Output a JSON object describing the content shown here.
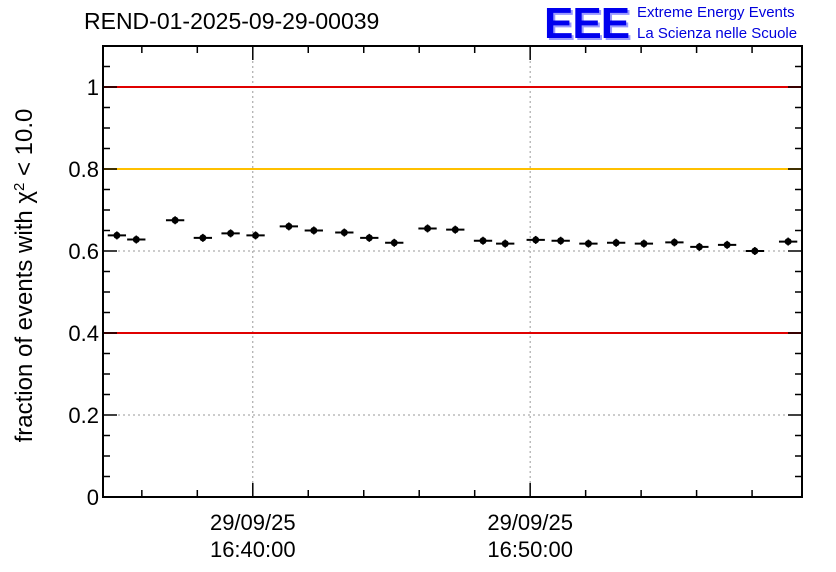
{
  "header": {
    "run_id": "REND-01-2025-09-29-00039"
  },
  "logo": {
    "mark": "EEE",
    "line1": "Extreme Energy Events",
    "line2": "La Scienza nelle Scuole",
    "color": "#0000ee"
  },
  "chart_data": {
    "type": "scatter",
    "title": "REND-01-2025-09-29-00039",
    "ylabel_prefix": "fraction of events with χ",
    "ylabel_sup": "2",
    "ylabel_suffix": " < 10.0",
    "xlabel": "",
    "ylim": [
      0,
      1.1
    ],
    "xlim_minutes": [
      0,
      25.2
    ],
    "yticks": [
      0,
      0.2,
      0.4,
      0.6,
      0.8,
      1
    ],
    "ytick_labels": [
      "0",
      "0.2",
      "0.4",
      "0.6",
      "0.8",
      "1"
    ],
    "xticks": [
      {
        "minute": 5.4,
        "date": "29/09/25",
        "time": "16:40:00"
      },
      {
        "minute": 15.4,
        "date": "29/09/25",
        "time": "16:50:00"
      }
    ],
    "grid": true,
    "reference_lines": [
      {
        "y": 1.0,
        "color": "#e00000"
      },
      {
        "y": 0.8,
        "color": "#ffc000"
      },
      {
        "y": 0.4,
        "color": "#e00000"
      }
    ],
    "bin_width_minutes": 0.66,
    "series": [
      {
        "name": "fraction",
        "x": [
          0.5,
          1.2,
          2.6,
          3.6,
          4.6,
          5.5,
          6.7,
          7.6,
          8.7,
          9.6,
          10.5,
          11.7,
          12.7,
          13.7,
          14.5,
          15.6,
          16.5,
          17.5,
          18.5,
          19.5,
          20.6,
          21.5,
          22.5,
          23.5,
          24.7
        ],
        "values": [
          0.638,
          0.628,
          0.675,
          0.632,
          0.643,
          0.638,
          0.66,
          0.65,
          0.645,
          0.632,
          0.62,
          0.655,
          0.652,
          0.625,
          0.618,
          0.627,
          0.625,
          0.618,
          0.62,
          0.618,
          0.621,
          0.61,
          0.615,
          0.6,
          0.623
        ]
      }
    ]
  }
}
